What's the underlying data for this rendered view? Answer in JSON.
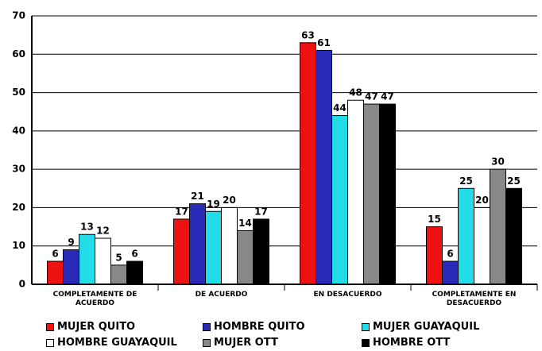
{
  "chart_data": {
    "type": "bar",
    "categories": [
      "COMPLETAMENTE DE ACUERDO",
      "DE ACUERDO",
      "EN DESACUERDO",
      "COMPLETAMENTE EN DESACUERDO"
    ],
    "series": [
      {
        "name": "MUJER QUITO",
        "color": "#ee1111",
        "values": [
          6,
          17,
          63,
          15
        ]
      },
      {
        "name": "HOMBRE QUITO",
        "color": "#2a2ab8",
        "values": [
          9,
          21,
          61,
          6
        ]
      },
      {
        "name": "MUJER GUAYAQUIL",
        "color": "#22dde8",
        "values": [
          13,
          19,
          44,
          25
        ]
      },
      {
        "name": "HOMBRE GUAYAQUIL",
        "color": "#ffffff",
        "values": [
          12,
          20,
          48,
          20
        ]
      },
      {
        "name": "MUJER OTT",
        "color": "#888888",
        "values": [
          5,
          14,
          47,
          30
        ]
      },
      {
        "name": "HOMBRE OTT",
        "color": "#000000",
        "values": [
          6,
          17,
          47,
          25
        ]
      }
    ],
    "ylim": [
      0,
      70
    ],
    "yticks": [
      0,
      10,
      20,
      30,
      40,
      50,
      60,
      70
    ],
    "grid": true
  }
}
